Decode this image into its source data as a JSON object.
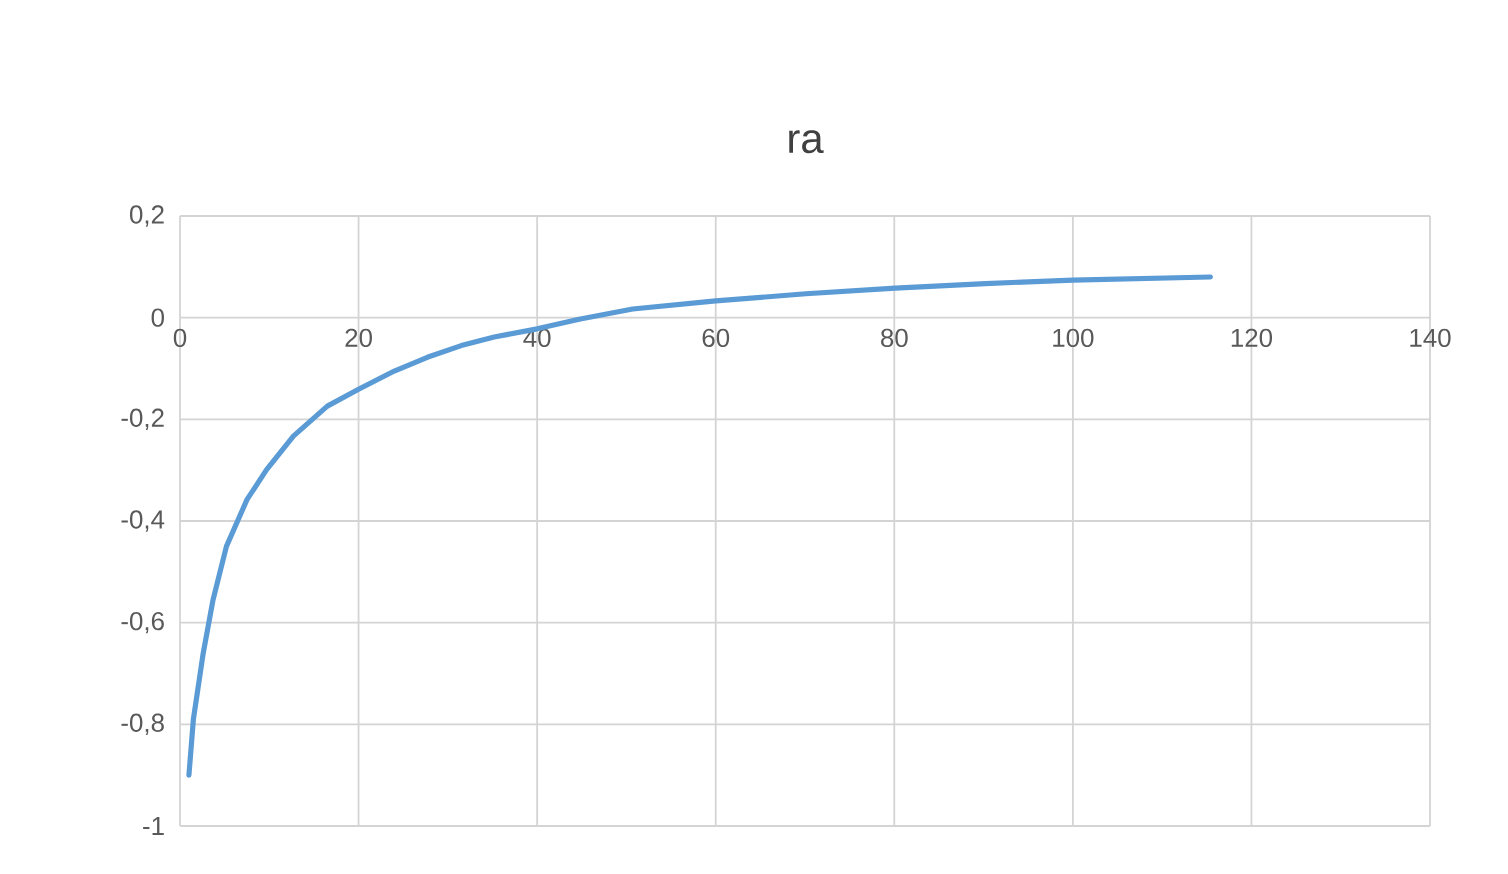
{
  "chart_data": {
    "type": "line",
    "title": "ra",
    "xlim": [
      0,
      140
    ],
    "xticks": [
      0,
      20,
      40,
      60,
      80,
      100,
      120,
      140
    ],
    "ylim": [
      -1,
      0.2
    ],
    "yticks": [
      {
        "value": -1,
        "label": "-1"
      },
      {
        "value": -0.8,
        "label": "-0,8"
      },
      {
        "value": -0.6,
        "label": "-0,6"
      },
      {
        "value": -0.4,
        "label": "-0,4"
      },
      {
        "value": -0.2,
        "label": "-0,2"
      },
      0,
      {
        "value": 0.2,
        "label": "0,2"
      }
    ],
    "grid": true,
    "marker": "none",
    "line_style": "solid",
    "series": [
      {
        "color": "#5b9bd5",
        "x": [
          1,
          1.5,
          2.6,
          3.7,
          5.2,
          7.5,
          9.7,
          12.7,
          16.5,
          20,
          24,
          27.7,
          31.5,
          35.2,
          40,
          44.7,
          50.7,
          60,
          70.1,
          80.1,
          90.2,
          100,
          115.4
        ],
        "values": [
          -0.9,
          -0.79,
          -0.66,
          -0.555,
          -0.45,
          -0.358,
          -0.299,
          -0.233,
          -0.174,
          -0.141,
          -0.105,
          -0.078,
          -0.055,
          -0.038,
          -0.022,
          -0.003,
          0.017,
          0.033,
          0.047,
          0.058,
          0.067,
          0.074,
          0.08
        ]
      }
    ]
  }
}
